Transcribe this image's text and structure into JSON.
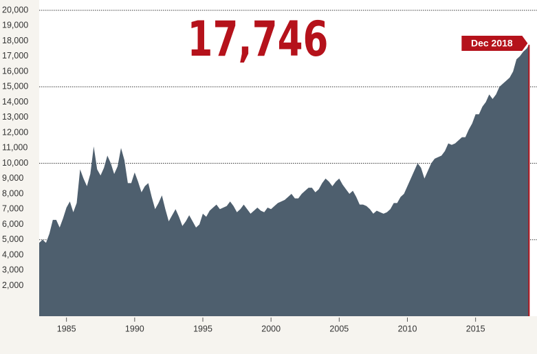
{
  "chart_data": {
    "type": "area",
    "headline": "17,746",
    "end_label": "Dec 2018",
    "color": "#4e5f6e",
    "accent": "#b5121b",
    "x": [
      1983,
      1983.25,
      1983.5,
      1983.75,
      1984,
      1984.25,
      1984.5,
      1984.75,
      1985,
      1985.25,
      1985.5,
      1985.75,
      1986,
      1986.25,
      1986.5,
      1986.75,
      1987,
      1987.25,
      1987.5,
      1987.75,
      1988,
      1988.25,
      1988.5,
      1988.75,
      1989,
      1989.25,
      1989.5,
      1989.75,
      1990,
      1990.25,
      1990.5,
      1990.75,
      1991,
      1991.25,
      1991.5,
      1991.75,
      1992,
      1992.25,
      1992.5,
      1992.75,
      1993,
      1993.25,
      1993.5,
      1993.75,
      1994,
      1994.25,
      1994.5,
      1994.75,
      1995,
      1995.25,
      1995.5,
      1995.75,
      1996,
      1996.25,
      1996.5,
      1996.75,
      1997,
      1997.25,
      1997.5,
      1997.75,
      1998,
      1998.25,
      1998.5,
      1998.75,
      1999,
      1999.25,
      1999.5,
      1999.75,
      2000,
      2000.25,
      2000.5,
      2000.75,
      2001,
      2001.25,
      2001.5,
      2001.75,
      2002,
      2002.25,
      2002.5,
      2002.75,
      2003,
      2003.25,
      2003.5,
      2003.75,
      2004,
      2004.25,
      2004.5,
      2004.75,
      2005,
      2005.25,
      2005.5,
      2005.75,
      2006,
      2006.25,
      2006.5,
      2006.75,
      2007,
      2007.25,
      2007.5,
      2007.75,
      2008,
      2008.25,
      2008.5,
      2008.75,
      2009,
      2009.25,
      2009.5,
      2009.75,
      2010,
      2010.25,
      2010.5,
      2010.75,
      2011,
      2011.25,
      2011.5,
      2011.75,
      2012,
      2012.25,
      2012.5,
      2012.75,
      2013,
      2013.25,
      2013.5,
      2013.75,
      2014,
      2014.25,
      2014.5,
      2014.75,
      2015,
      2015.25,
      2015.5,
      2015.75,
      2016,
      2016.25,
      2016.5,
      2016.75,
      2017,
      2017.25,
      2017.5,
      2017.75,
      2018,
      2018.25,
      2018.5,
      2018.75,
      2018.917
    ],
    "values": [
      4800,
      5000,
      4800,
      5400,
      6300,
      6300,
      5800,
      6400,
      7100,
      7500,
      6800,
      7400,
      9600,
      9000,
      8500,
      9300,
      11100,
      9600,
      9200,
      9700,
      10500,
      10000,
      9300,
      9800,
      11000,
      10200,
      8700,
      8700,
      9400,
      8800,
      8100,
      8500,
      8700,
      7800,
      7000,
      7400,
      7900,
      7000,
      6200,
      6600,
      7000,
      6500,
      5900,
      6200,
      6600,
      6200,
      5800,
      6000,
      6700,
      6500,
      6900,
      7100,
      7300,
      7000,
      7100,
      7200,
      7500,
      7200,
      6800,
      7000,
      7300,
      7000,
      6700,
      6900,
      7100,
      6900,
      6800,
      7100,
      7000,
      7200,
      7400,
      7500,
      7600,
      7800,
      8000,
      7700,
      7700,
      8000,
      8200,
      8400,
      8400,
      8100,
      8300,
      8700,
      9000,
      8800,
      8500,
      8800,
      9000,
      8600,
      8300,
      8000,
      8200,
      7800,
      7300,
      7300,
      7200,
      7000,
      6700,
      6900,
      6800,
      6700,
      6800,
      7000,
      7400,
      7400,
      7800,
      8000,
      8500,
      9000,
      9500,
      10000,
      9700,
      9000,
      9500,
      10000,
      10300,
      10400,
      10500,
      10800,
      11300,
      11200,
      11300,
      11500,
      11700,
      11700,
      12200,
      12600,
      13200,
      13200,
      13700,
      14000,
      14500,
      14200,
      14500,
      15000,
      15200,
      15400,
      15600,
      16000,
      16800,
      17000,
      17300,
      17500,
      17746
    ],
    "xlim": [
      1983,
      2019
    ],
    "xticks": [
      1985,
      1990,
      1995,
      2000,
      2005,
      2010,
      2015
    ],
    "ylim": [
      0,
      20000
    ],
    "yticks": [
      {
        "value": 2000,
        "label": "2,000"
      },
      {
        "value": 3000,
        "label": "3,000"
      },
      {
        "value": 4000,
        "label": "4,000"
      },
      {
        "value": 5000,
        "label": "5,000"
      },
      {
        "value": 6000,
        "label": "6,000"
      },
      {
        "value": 7000,
        "label": "7,000"
      },
      {
        "value": 8000,
        "label": "8,000"
      },
      {
        "value": 9000,
        "label": "9,000"
      },
      {
        "value": 10000,
        "label": "10,000"
      },
      {
        "value": 11000,
        "label": "11,000"
      },
      {
        "value": 12000,
        "label": "12,000"
      },
      {
        "value": 13000,
        "label": "13,000"
      },
      {
        "value": 14000,
        "label": "14,000"
      },
      {
        "value": 15000,
        "label": "15,000"
      },
      {
        "value": 16000,
        "label": "16,000"
      },
      {
        "value": 17000,
        "label": "17,000"
      },
      {
        "value": 18000,
        "label": "18,000"
      },
      {
        "value": 19000,
        "label": "19,000"
      },
      {
        "value": 20000,
        "label": "20,000"
      }
    ],
    "grid_lines": [
      5000,
      10000,
      15000,
      20000
    ]
  }
}
